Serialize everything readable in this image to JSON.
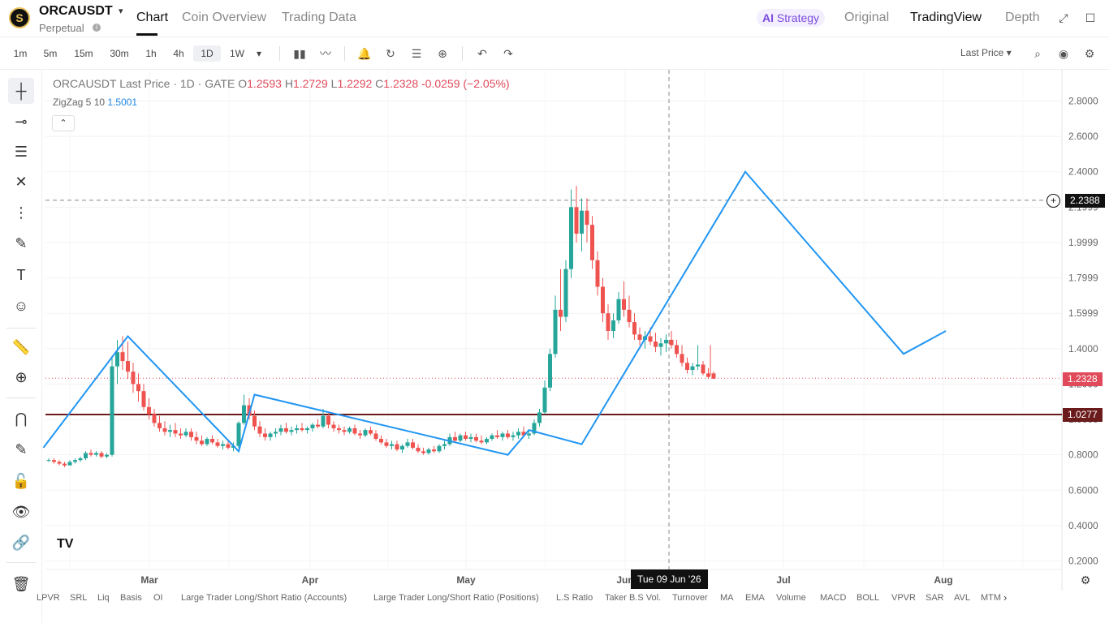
{
  "header": {
    "symbol": "ORCAUSDT",
    "caret": "▾",
    "subtitle": "Perpetual",
    "info": "i",
    "tabs": [
      {
        "label": "Chart"
      },
      {
        "label": "Coin Overview"
      },
      {
        "label": "Trading Data"
      }
    ],
    "strategy": {
      "ai": "AI",
      "label": "Strategy"
    },
    "views": [
      {
        "label": "Original"
      },
      {
        "label": "TradingView"
      },
      {
        "label": "Depth"
      }
    ],
    "expand_icon": "⤢",
    "window_icon": "☐"
  },
  "toolbar": {
    "timeframes": [
      "1m",
      "5m",
      "15m",
      "30m",
      "1h",
      "4h",
      "1D",
      "1W"
    ],
    "active_timeframe": "1D",
    "more_caret": "▾",
    "icons": {
      "candles": "▮▮",
      "indicators": "〰",
      "alert": "🔔",
      "replay": "↻",
      "templates": "☰",
      "add": "⊕",
      "undo": "↶",
      "redo": "↷",
      "search": "⌕",
      "camera": "◉",
      "settings": "⚙"
    },
    "price_type": "Last Price",
    "price_type_caret": "▾"
  },
  "sidebar": {
    "tools": [
      {
        "name": "crosshair",
        "glyph": "┼"
      },
      {
        "name": "horizontal-line",
        "glyph": "⊸"
      },
      {
        "name": "fib",
        "glyph": "☰"
      },
      {
        "name": "pattern",
        "glyph": "✕"
      },
      {
        "name": "projection",
        "glyph": "⋮"
      },
      {
        "name": "brush",
        "glyph": "✎"
      },
      {
        "name": "text",
        "glyph": "T"
      },
      {
        "name": "emoji",
        "glyph": "☺"
      },
      {
        "name": "ruler",
        "glyph": "📏"
      },
      {
        "name": "zoom",
        "glyph": "⊕"
      },
      {
        "name": "magnet",
        "glyph": "⋂"
      },
      {
        "name": "lock-draw",
        "glyph": "✎"
      },
      {
        "name": "lock",
        "glyph": "🔓"
      },
      {
        "name": "eye",
        "glyph": "👁"
      },
      {
        "name": "link",
        "glyph": "🔗"
      },
      {
        "name": "trash",
        "glyph": "🗑"
      }
    ]
  },
  "legend": {
    "title": "ORCAUSDT Last Price · 1D · GATE",
    "o_label": "O",
    "o": "1.2593",
    "h_label": "H",
    "h": "1.2729",
    "l_label": "L",
    "l": "1.2292",
    "c_label": "C",
    "c": "1.2328",
    "change": "-0.0259 (−2.05%)",
    "zigzag_label": "ZigZag 5 10",
    "zigzag_value": "1.5001",
    "collapse": "⌃"
  },
  "tv_logo": "TV",
  "crosshair": {
    "price": "2.2388",
    "date": "Tue 09 Jun '26"
  },
  "last_price_tag": "1.2328",
  "hline_tag": "1.0277",
  "chart_data": {
    "type": "candlestick",
    "yaxis": {
      "ticks": [
        "2.8000",
        "2.6000",
        "2.4000",
        "2.1999",
        "1.9999",
        "1.7999",
        "1.5999",
        "1.4000",
        "1.2000",
        "1.0000",
        "0.8000",
        "0.6000",
        "0.4000",
        "0.2000"
      ],
      "range": [
        0.2,
        2.8
      ]
    },
    "xaxis": {
      "ticks": [
        "Mar",
        "Apr",
        "May",
        "Jun",
        "Jul",
        "Aug"
      ]
    },
    "colors": {
      "up": "#26a69a",
      "down": "#ef5350",
      "zigzag": "#2196f3",
      "hline": "#6b1b1b",
      "last": "#e04a5a"
    },
    "crosshair_price": 2.2388,
    "last_price": 1.2328,
    "horizontal_line": 1.0277,
    "zigzag_pivots": [
      {
        "day": -1,
        "price": 0.84
      },
      {
        "day": 15,
        "price": 1.47
      },
      {
        "day": 36,
        "price": 0.82
      },
      {
        "day": 39,
        "price": 1.14
      },
      {
        "day": 87,
        "price": 0.8
      },
      {
        "day": 91,
        "price": 0.94
      },
      {
        "day": 101,
        "price": 0.86
      },
      {
        "day": 132,
        "price": 2.4
      },
      {
        "day": 162,
        "price": 1.37
      },
      {
        "day": 170,
        "price": 1.5
      }
    ],
    "candles": [
      [
        0.77,
        0.78,
        0.76,
        0.77
      ],
      [
        0.77,
        0.78,
        0.75,
        0.76
      ],
      [
        0.76,
        0.77,
        0.74,
        0.75
      ],
      [
        0.75,
        0.76,
        0.73,
        0.74
      ],
      [
        0.74,
        0.77,
        0.74,
        0.76
      ],
      [
        0.76,
        0.78,
        0.75,
        0.77
      ],
      [
        0.77,
        0.79,
        0.76,
        0.78
      ],
      [
        0.78,
        0.82,
        0.77,
        0.81
      ],
      [
        0.81,
        0.83,
        0.79,
        0.8
      ],
      [
        0.8,
        0.82,
        0.79,
        0.81
      ],
      [
        0.81,
        0.82,
        0.78,
        0.79
      ],
      [
        0.79,
        0.81,
        0.78,
        0.8
      ],
      [
        0.8,
        1.36,
        0.79,
        1.3
      ],
      [
        1.3,
        1.45,
        1.2,
        1.38
      ],
      [
        1.38,
        1.47,
        1.28,
        1.33
      ],
      [
        1.33,
        1.44,
        1.23,
        1.27
      ],
      [
        1.27,
        1.32,
        1.15,
        1.2
      ],
      [
        1.2,
        1.26,
        1.1,
        1.16
      ],
      [
        1.16,
        1.2,
        1.05,
        1.07
      ],
      [
        1.07,
        1.12,
        1.0,
        1.03
      ],
      [
        1.03,
        1.06,
        0.96,
        0.98
      ],
      [
        0.98,
        1.02,
        0.93,
        0.95
      ],
      [
        0.95,
        0.99,
        0.91,
        0.93
      ],
      [
        0.93,
        0.97,
        0.9,
        0.94
      ],
      [
        0.94,
        0.98,
        0.9,
        0.92
      ],
      [
        0.92,
        0.95,
        0.89,
        0.91
      ],
      [
        0.91,
        0.95,
        0.9,
        0.93
      ],
      [
        0.93,
        0.95,
        0.88,
        0.9
      ],
      [
        0.9,
        0.93,
        0.86,
        0.88
      ],
      [
        0.88,
        0.91,
        0.85,
        0.86
      ],
      [
        0.86,
        0.9,
        0.85,
        0.89
      ],
      [
        0.89,
        0.91,
        0.86,
        0.87
      ],
      [
        0.87,
        0.89,
        0.84,
        0.85
      ],
      [
        0.85,
        0.88,
        0.83,
        0.86
      ],
      [
        0.86,
        0.88,
        0.83,
        0.84
      ],
      [
        0.84,
        0.87,
        0.82,
        0.85
      ],
      [
        0.85,
        0.99,
        0.84,
        0.98
      ],
      [
        0.98,
        1.14,
        0.97,
        1.08
      ],
      [
        1.08,
        1.12,
        1.0,
        1.02
      ],
      [
        1.02,
        1.05,
        0.94,
        0.96
      ],
      [
        0.96,
        0.99,
        0.9,
        0.92
      ],
      [
        0.92,
        0.95,
        0.88,
        0.9
      ],
      [
        0.9,
        0.93,
        0.88,
        0.92
      ],
      [
        0.92,
        0.95,
        0.9,
        0.93
      ],
      [
        0.93,
        0.97,
        0.91,
        0.95
      ],
      [
        0.95,
        0.98,
        0.92,
        0.93
      ],
      [
        0.93,
        0.96,
        0.91,
        0.94
      ],
      [
        0.94,
        0.97,
        0.92,
        0.95
      ],
      [
        0.95,
        0.98,
        0.93,
        0.94
      ],
      [
        0.94,
        0.96,
        0.92,
        0.95
      ],
      [
        0.95,
        0.98,
        0.93,
        0.97
      ],
      [
        0.97,
        1.0,
        0.95,
        0.96
      ],
      [
        0.96,
        1.06,
        0.95,
        1.02
      ],
      [
        1.02,
        1.04,
        0.95,
        0.97
      ],
      [
        0.97,
        0.99,
        0.93,
        0.95
      ],
      [
        0.95,
        0.97,
        0.92,
        0.94
      ],
      [
        0.94,
        0.96,
        0.91,
        0.93
      ],
      [
        0.93,
        0.96,
        0.92,
        0.95
      ],
      [
        0.95,
        0.97,
        0.91,
        0.92
      ],
      [
        0.92,
        0.94,
        0.89,
        0.91
      ],
      [
        0.91,
        0.95,
        0.9,
        0.94
      ],
      [
        0.94,
        0.96,
        0.91,
        0.92
      ],
      [
        0.92,
        0.94,
        0.88,
        0.89
      ],
      [
        0.89,
        0.91,
        0.86,
        0.87
      ],
      [
        0.87,
        0.89,
        0.84,
        0.85
      ],
      [
        0.85,
        0.88,
        0.83,
        0.86
      ],
      [
        0.86,
        0.88,
        0.82,
        0.83
      ],
      [
        0.83,
        0.86,
        0.81,
        0.85
      ],
      [
        0.85,
        0.89,
        0.84,
        0.87
      ],
      [
        0.87,
        0.89,
        0.83,
        0.84
      ],
      [
        0.84,
        0.86,
        0.81,
        0.82
      ],
      [
        0.82,
        0.84,
        0.8,
        0.81
      ],
      [
        0.81,
        0.84,
        0.8,
        0.83
      ],
      [
        0.83,
        0.85,
        0.81,
        0.82
      ],
      [
        0.82,
        0.86,
        0.81,
        0.85
      ],
      [
        0.85,
        0.88,
        0.83,
        0.86
      ],
      [
        0.86,
        0.92,
        0.85,
        0.9
      ],
      [
        0.9,
        0.93,
        0.87,
        0.88
      ],
      [
        0.88,
        0.92,
        0.87,
        0.91
      ],
      [
        0.91,
        0.93,
        0.88,
        0.89
      ],
      [
        0.89,
        0.92,
        0.87,
        0.9
      ],
      [
        0.9,
        0.92,
        0.87,
        0.88
      ],
      [
        0.88,
        0.91,
        0.86,
        0.87
      ],
      [
        0.87,
        0.9,
        0.86,
        0.89
      ],
      [
        0.89,
        0.92,
        0.88,
        0.91
      ],
      [
        0.91,
        0.94,
        0.89,
        0.9
      ],
      [
        0.9,
        0.93,
        0.88,
        0.92
      ],
      [
        0.92,
        0.94,
        0.89,
        0.9
      ],
      [
        0.9,
        0.93,
        0.88,
        0.91
      ],
      [
        0.91,
        0.95,
        0.89,
        0.93
      ],
      [
        0.93,
        0.96,
        0.9,
        0.91
      ],
      [
        0.91,
        0.94,
        0.89,
        0.92
      ],
      [
        0.92,
        1.0,
        0.91,
        0.98
      ],
      [
        0.98,
        1.06,
        0.96,
        1.04
      ],
      [
        1.04,
        1.22,
        1.03,
        1.18
      ],
      [
        1.18,
        1.4,
        1.16,
        1.37
      ],
      [
        1.37,
        1.7,
        1.35,
        1.62
      ],
      [
        1.62,
        1.85,
        1.5,
        1.58
      ],
      [
        1.58,
        1.9,
        1.55,
        1.85
      ],
      [
        1.85,
        2.3,
        1.8,
        2.2
      ],
      [
        2.2,
        2.32,
        2.0,
        2.05
      ],
      [
        2.05,
        2.25,
        1.95,
        2.18
      ],
      [
        2.18,
        2.25,
        2.0,
        2.1
      ],
      [
        2.1,
        2.15,
        1.85,
        1.9
      ],
      [
        1.9,
        1.95,
        1.7,
        1.75
      ],
      [
        1.75,
        1.8,
        1.55,
        1.6
      ],
      [
        1.6,
        1.65,
        1.45,
        1.5
      ],
      [
        1.5,
        1.6,
        1.46,
        1.56
      ],
      [
        1.56,
        1.72,
        1.54,
        1.68
      ],
      [
        1.68,
        1.78,
        1.58,
        1.62
      ],
      [
        1.62,
        1.7,
        1.52,
        1.55
      ],
      [
        1.55,
        1.6,
        1.45,
        1.48
      ],
      [
        1.48,
        1.52,
        1.42,
        1.45
      ],
      [
        1.45,
        1.5,
        1.4,
        1.47
      ],
      [
        1.47,
        1.52,
        1.42,
        1.44
      ],
      [
        1.44,
        1.49,
        1.38,
        1.41
      ],
      [
        1.41,
        1.46,
        1.36,
        1.43
      ],
      [
        1.43,
        1.48,
        1.38,
        1.45
      ],
      [
        1.45,
        1.5,
        1.4,
        1.42
      ],
      [
        1.42,
        1.45,
        1.35,
        1.37
      ],
      [
        1.37,
        1.42,
        1.3,
        1.32
      ],
      [
        1.32,
        1.35,
        1.26,
        1.28
      ],
      [
        1.28,
        1.32,
        1.25,
        1.3
      ],
      [
        1.3,
        1.42,
        1.28,
        1.31
      ],
      [
        1.31,
        1.33,
        1.25,
        1.26
      ],
      [
        1.26,
        1.29,
        1.23,
        1.24
      ],
      [
        1.26,
        1.27,
        1.23,
        1.23
      ]
    ]
  },
  "indicators": [
    "LPVR",
    "SRL",
    "Liq",
    "Basis",
    "OI",
    "Large Trader Long/Short Ratio (Accounts)",
    "Large Trader Long/Short Ratio (Positions)",
    "L.S Ratio",
    "Taker B.S Vol.",
    "Turnover",
    "MA",
    "EMA",
    "Volume",
    "MACD",
    "BOLL",
    "VPVR",
    "SAR",
    "AVL",
    "MTM"
  ],
  "indicator_next": "›",
  "chart_settings_icon": "⚙"
}
